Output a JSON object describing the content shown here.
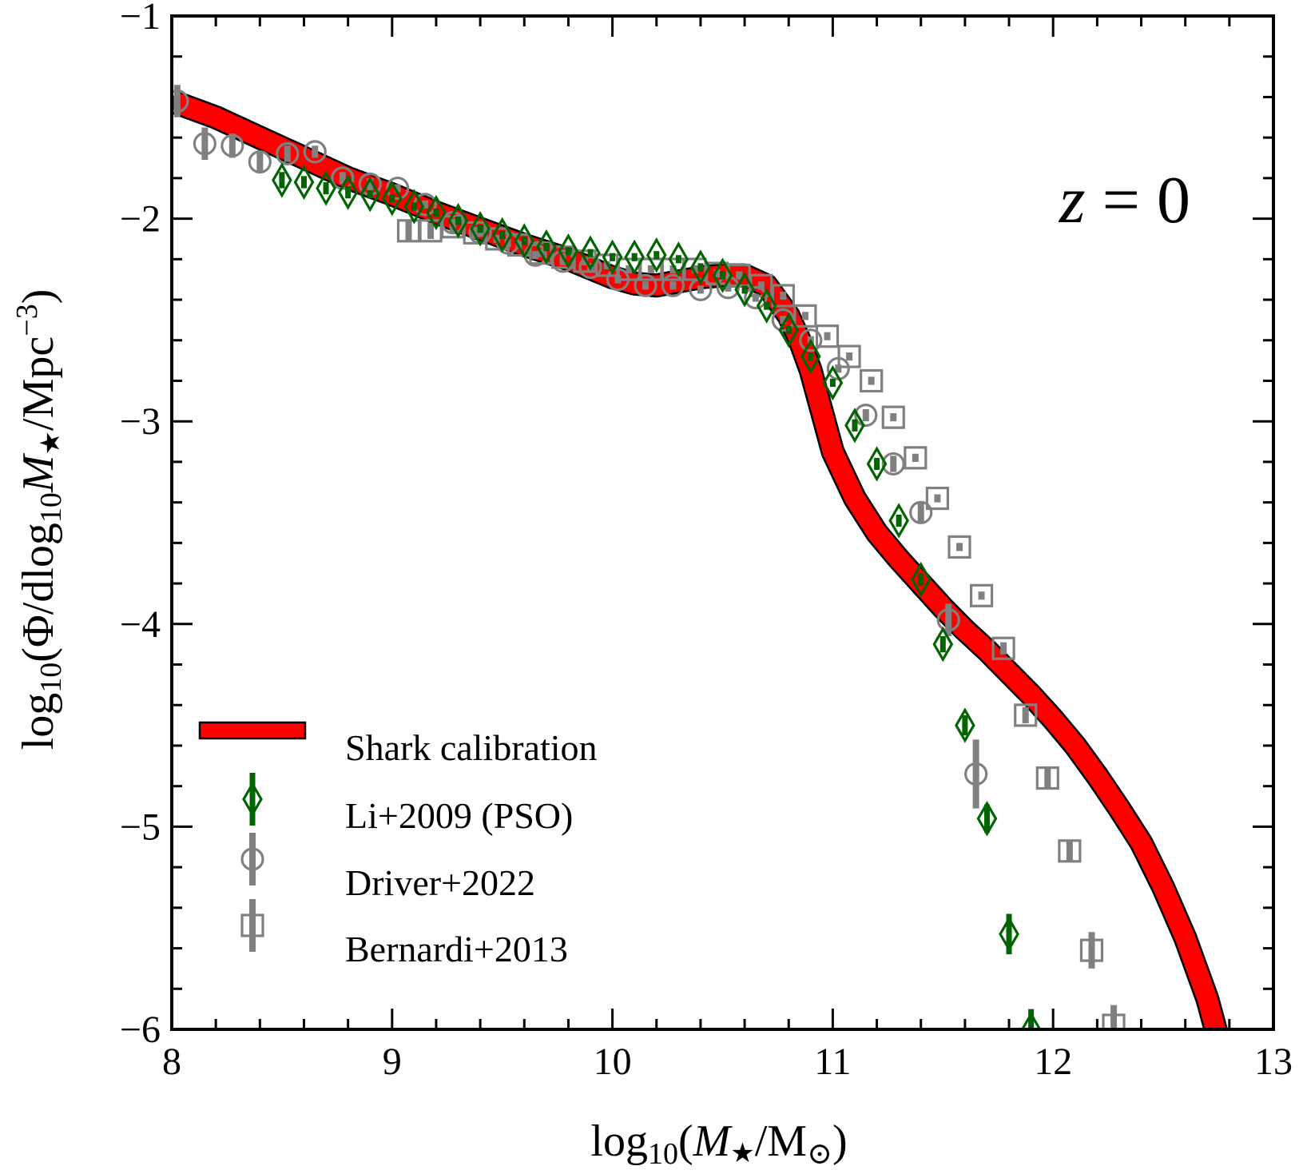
{
  "chart_data": {
    "type": "scatter",
    "xlabel": "log10(M★/M⊙)",
    "ylabel": "log10(Φ/dlog10M★/Mpc−3)",
    "xlabel_parts": {
      "pre": "log",
      "sub": "10",
      "open": "(",
      "var": "M",
      "star": "★",
      "slash": "/M",
      "sun": "⊙",
      "close": ")"
    },
    "ylabel_parts": {
      "pre": "log",
      "sub1": "10",
      "mid": "(Φ/dlog",
      "sub2": "10",
      "var": "M",
      "star": "★",
      "unit": "/Mpc",
      "sup": "−3",
      "close": ")"
    },
    "xlim": [
      8,
      13
    ],
    "ylim": [
      -6,
      -1
    ],
    "xticks": [
      8,
      9,
      10,
      11,
      12,
      13
    ],
    "xtick_labels": [
      "8",
      "9",
      "10",
      "11",
      "12",
      "13"
    ],
    "yticks": [
      -1,
      -2,
      -3,
      -4,
      -5,
      -6
    ],
    "ytick_labels": [
      "−1",
      "−2",
      "−3",
      "−4",
      "−5",
      "−6"
    ],
    "annotation": {
      "var": "z",
      "rest": " = 0",
      "full": "z = 0"
    },
    "legend_position": "lower-left",
    "series": [
      {
        "name": "Shark calibration",
        "kind": "band",
        "color": "#ff0000",
        "edge_color": "#000000",
        "x": [
          8.0,
          8.2,
          8.4,
          8.6,
          8.8,
          9.0,
          9.2,
          9.4,
          9.6,
          9.8,
          10.0,
          10.1,
          10.2,
          10.3,
          10.4,
          10.5,
          10.6,
          10.7,
          10.8,
          10.85,
          10.9,
          10.95,
          11.0,
          11.1,
          11.2,
          11.3,
          11.4,
          11.5,
          11.6,
          11.7,
          11.8,
          11.9,
          12.0,
          12.1,
          12.2,
          12.3,
          12.4,
          12.5,
          12.6,
          12.7,
          12.75
        ],
        "y": [
          -1.42,
          -1.5,
          -1.6,
          -1.7,
          -1.8,
          -1.88,
          -1.97,
          -2.05,
          -2.13,
          -2.2,
          -2.29,
          -2.32,
          -2.33,
          -2.31,
          -2.29,
          -2.28,
          -2.28,
          -2.33,
          -2.48,
          -2.6,
          -2.75,
          -2.95,
          -3.15,
          -3.38,
          -3.55,
          -3.68,
          -3.8,
          -3.92,
          -4.03,
          -4.13,
          -4.24,
          -4.35,
          -4.47,
          -4.6,
          -4.75,
          -4.91,
          -5.08,
          -5.3,
          -5.55,
          -5.85,
          -6.05
        ]
      },
      {
        "name": "Li+2009 (PSO)",
        "kind": "points",
        "marker": "diamond",
        "color": "#006400",
        "x": [
          8.5,
          8.6,
          8.7,
          8.8,
          8.9,
          9.0,
          9.1,
          9.2,
          9.3,
          9.4,
          9.5,
          9.6,
          9.7,
          9.8,
          9.9,
          10.0,
          10.1,
          10.2,
          10.3,
          10.4,
          10.5,
          10.6,
          10.7,
          10.8,
          10.9,
          11.0,
          11.1,
          11.2,
          11.3,
          11.4,
          11.5,
          11.6,
          11.7,
          11.8,
          11.9
        ],
        "y": [
          -1.81,
          -1.82,
          -1.85,
          -1.87,
          -1.88,
          -1.9,
          -1.94,
          -1.97,
          -2.01,
          -2.05,
          -2.08,
          -2.11,
          -2.14,
          -2.16,
          -2.17,
          -2.19,
          -2.19,
          -2.18,
          -2.2,
          -2.24,
          -2.28,
          -2.35,
          -2.43,
          -2.55,
          -2.68,
          -2.81,
          -3.02,
          -3.21,
          -3.49,
          -3.78,
          -4.1,
          -4.5,
          -4.96,
          -5.53,
          -6.0
        ],
        "err": [
          0.04,
          0.03,
          0.03,
          0.03,
          0.02,
          0.02,
          0.02,
          0.02,
          0.02,
          0.02,
          0.02,
          0.02,
          0.02,
          0.02,
          0.02,
          0.02,
          0.02,
          0.02,
          0.02,
          0.02,
          0.02,
          0.02,
          0.02,
          0.02,
          0.02,
          0.02,
          0.03,
          0.03,
          0.03,
          0.03,
          0.04,
          0.05,
          0.07,
          0.1,
          0.1
        ]
      },
      {
        "name": "Driver+2022",
        "kind": "points",
        "marker": "circle",
        "color": "#808080",
        "x": [
          8.025,
          8.15,
          8.275,
          8.4,
          8.525,
          8.65,
          8.775,
          8.9,
          9.025,
          9.15,
          9.275,
          9.4,
          9.525,
          9.65,
          9.775,
          9.9,
          10.025,
          10.15,
          10.275,
          10.4,
          10.525,
          10.65,
          10.775,
          10.9,
          11.025,
          11.15,
          11.275,
          11.4,
          11.525,
          11.65
        ],
        "y": [
          -1.42,
          -1.63,
          -1.64,
          -1.72,
          -1.68,
          -1.67,
          -1.8,
          -1.83,
          -1.85,
          -1.93,
          -2.02,
          -2.07,
          -2.12,
          -2.18,
          -2.21,
          -2.24,
          -2.3,
          -2.33,
          -2.33,
          -2.35,
          -2.34,
          -2.39,
          -2.5,
          -2.6,
          -2.74,
          -2.97,
          -3.21,
          -3.45,
          -3.98,
          -4.74
        ],
        "err": [
          0.08,
          0.08,
          0.06,
          0.05,
          0.04,
          0.03,
          0.03,
          0.03,
          0.02,
          0.02,
          0.02,
          0.02,
          0.02,
          0.02,
          0.02,
          0.02,
          0.02,
          0.02,
          0.02,
          0.02,
          0.02,
          0.02,
          0.02,
          0.02,
          0.02,
          0.03,
          0.04,
          0.05,
          0.08,
          0.17
        ]
      },
      {
        "name": "Bernardi+2013",
        "kind": "points",
        "marker": "square",
        "color": "#808080",
        "x": [
          9.075,
          9.175,
          9.275,
          9.375,
          9.475,
          9.575,
          9.675,
          9.775,
          9.875,
          9.975,
          10.075,
          10.175,
          10.275,
          10.375,
          10.475,
          10.575,
          10.675,
          10.775,
          10.875,
          10.975,
          11.075,
          11.175,
          11.275,
          11.375,
          11.475,
          11.575,
          11.675,
          11.775,
          11.875,
          11.975,
          12.075,
          12.175,
          12.275
        ],
        "y": [
          -2.06,
          -2.06,
          -2.04,
          -2.07,
          -2.1,
          -2.13,
          -2.17,
          -2.19,
          -2.21,
          -2.23,
          -2.25,
          -2.25,
          -2.25,
          -2.25,
          -2.27,
          -2.28,
          -2.33,
          -2.38,
          -2.48,
          -2.58,
          -2.68,
          -2.8,
          -2.98,
          -3.18,
          -3.38,
          -3.62,
          -3.86,
          -4.12,
          -4.45,
          -4.76,
          -5.12,
          -5.61,
          -5.98
        ],
        "err": [
          0.05,
          0.04,
          0.03,
          0.03,
          0.02,
          0.02,
          0.02,
          0.02,
          0.02,
          0.02,
          0.02,
          0.02,
          0.02,
          0.02,
          0.02,
          0.02,
          0.02,
          0.02,
          0.02,
          0.02,
          0.02,
          0.02,
          0.02,
          0.02,
          0.02,
          0.02,
          0.02,
          0.03,
          0.04,
          0.05,
          0.05,
          0.09,
          0.1
        ]
      }
    ]
  }
}
